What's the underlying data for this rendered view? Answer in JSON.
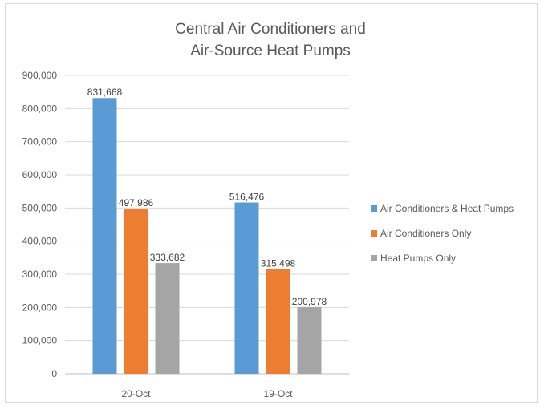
{
  "chart_data": {
    "type": "bar",
    "title_lines": [
      "Central Air Conditioners and",
      "Air-Source Heat Pumps"
    ],
    "categories": [
      "20-Oct",
      "19-Oct"
    ],
    "series": [
      {
        "name": "Air Conditioners & Heat Pumps",
        "values": [
          831668,
          516476
        ],
        "labels": [
          "831,668",
          "516,476"
        ],
        "color": "#5b9bd5"
      },
      {
        "name": "Air Conditioners Only",
        "values": [
          497986,
          315498
        ],
        "labels": [
          "497,986",
          "315,498"
        ],
        "color": "#ed7d31"
      },
      {
        "name": "Heat Pumps Only",
        "values": [
          333682,
          200978
        ],
        "labels": [
          "333,682",
          "200,978"
        ],
        "color": "#a5a5a5"
      }
    ],
    "ylim": [
      0,
      900000
    ],
    "yticks": [
      0,
      100000,
      200000,
      300000,
      400000,
      500000,
      600000,
      700000,
      800000,
      900000
    ],
    "ytick_labels": [
      "0",
      "100,000",
      "200,000",
      "300,000",
      "400,000",
      "500,000",
      "600,000",
      "700,000",
      "800,000",
      "900,000"
    ],
    "grid": true,
    "legend_position": "right"
  }
}
